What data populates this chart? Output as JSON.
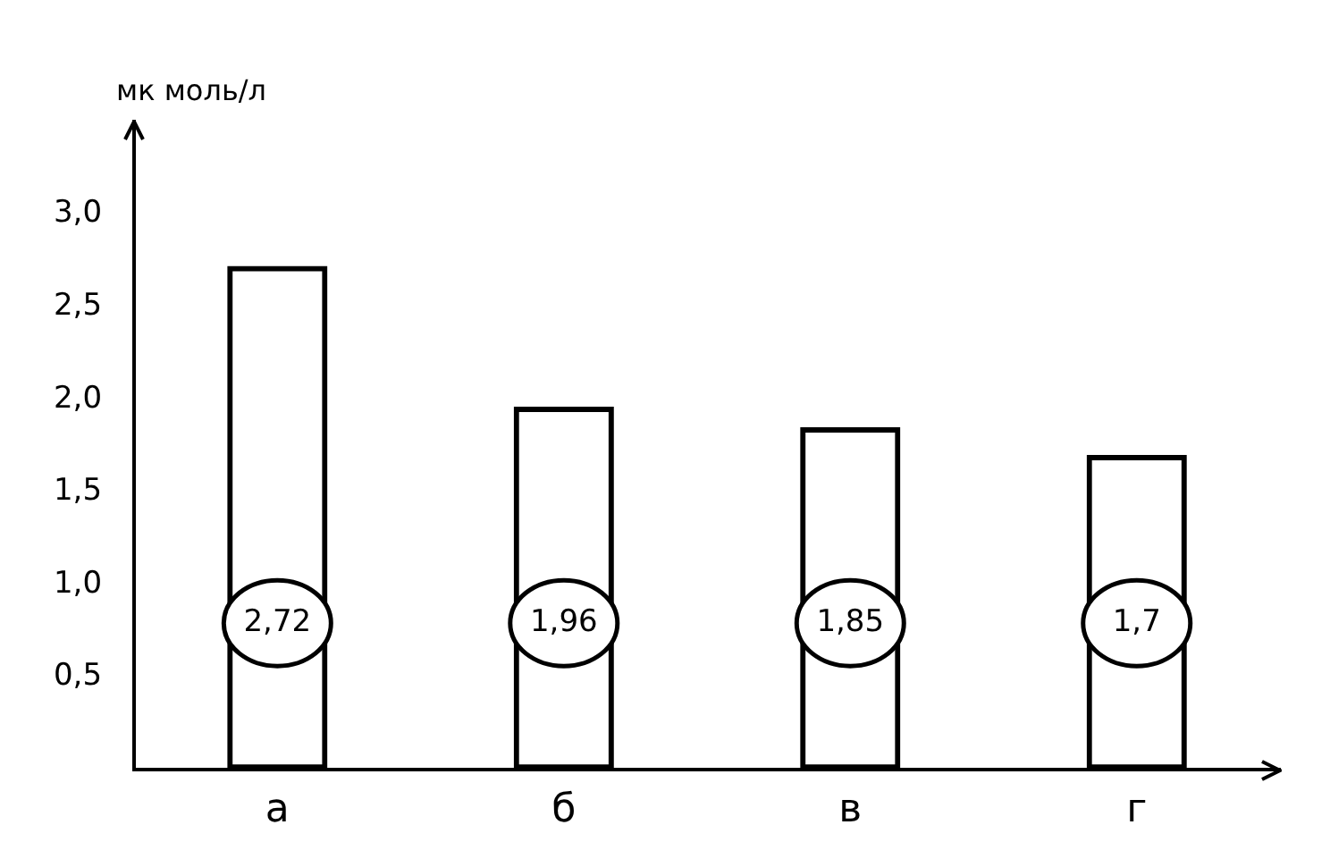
{
  "chart_data": {
    "type": "bar",
    "ylabel": "мк моль/л",
    "categories": [
      "а",
      "б",
      "в",
      "г"
    ],
    "values": [
      2.72,
      1.96,
      1.85,
      1.7
    ],
    "value_labels": [
      "2,72",
      "1,96",
      "1,85",
      "1,7"
    ],
    "color": "#000000",
    "ylim": [
      0,
      3.5
    ],
    "yticks": [
      {
        "value": 0.5,
        "label": "0,5"
      },
      {
        "value": 1,
        "label": "1,0"
      },
      {
        "value": 1.5,
        "label": "1,5"
      },
      {
        "value": 2,
        "label": "2,0"
      },
      {
        "value": 2.5,
        "label": "2,5"
      },
      {
        "value": 3,
        "label": "3,0"
      }
    ],
    "grid": false,
    "legend": false
  }
}
